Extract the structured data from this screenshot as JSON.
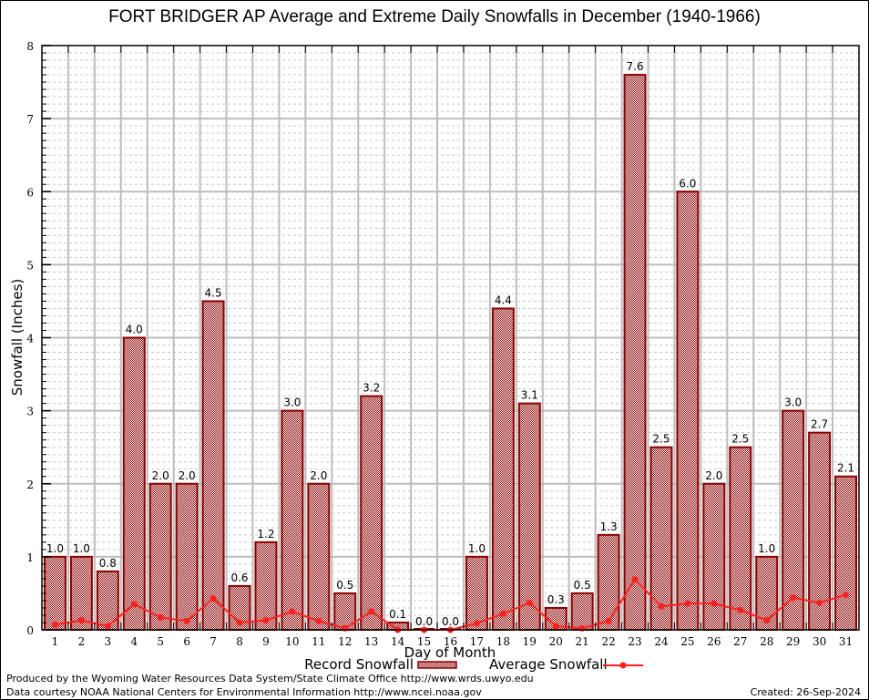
{
  "chart_data": {
    "type": "bar",
    "title": "FORT BRIDGER AP Average and Extreme Daily Snowfalls in December (1940-1966)",
    "xlabel": "Day of Month",
    "ylabel": "Snowfall (Inches)",
    "ylim": [
      0,
      8
    ],
    "yticks": [
      "0",
      "1",
      "2",
      "3",
      "4",
      "5",
      "6",
      "7",
      "8"
    ],
    "grid": true,
    "legend": "bottom",
    "categories": [
      "1",
      "2",
      "3",
      "4",
      "5",
      "6",
      "7",
      "8",
      "9",
      "10",
      "11",
      "12",
      "13",
      "14",
      "15",
      "16",
      "17",
      "18",
      "19",
      "20",
      "21",
      "22",
      "23",
      "24",
      "25",
      "26",
      "27",
      "28",
      "29",
      "30",
      "31"
    ],
    "series": [
      {
        "name": "Record Snowfall",
        "type": "bar",
        "color": "#8b0000",
        "values": [
          1.0,
          1.0,
          0.8,
          4.0,
          2.0,
          2.0,
          4.5,
          0.6,
          1.2,
          3.0,
          2.0,
          0.5,
          3.2,
          0.1,
          0.0,
          0.0,
          1.0,
          4.4,
          3.1,
          0.3,
          0.5,
          1.3,
          7.6,
          2.5,
          6.0,
          2.0,
          2.5,
          1.0,
          3.0,
          2.7,
          2.1
        ],
        "labels": [
          "1.0",
          "1.0",
          "0.8",
          "4.0",
          "2.0",
          "2.0",
          "4.5",
          "0.6",
          "1.2",
          "3.0",
          "2.0",
          "0.5",
          "3.2",
          "0.1",
          "0.0",
          "0.0",
          "1.0",
          "4.4",
          "3.1",
          "0.3",
          "0.5",
          "1.3",
          "7.6",
          "2.5",
          "6.0",
          "2.0",
          "2.5",
          "1.0",
          "3.0",
          "2.7",
          "2.1"
        ]
      },
      {
        "name": "Average Snowfall",
        "type": "line",
        "color": "#ff2020",
        "values": [
          0.07,
          0.13,
          0.05,
          0.35,
          0.17,
          0.12,
          0.43,
          0.1,
          0.13,
          0.25,
          0.12,
          0.02,
          0.25,
          0.0,
          0.0,
          0.0,
          0.09,
          0.22,
          0.37,
          0.05,
          0.02,
          0.12,
          0.69,
          0.32,
          0.36,
          0.36,
          0.27,
          0.13,
          0.44,
          0.37,
          0.48
        ]
      }
    ]
  },
  "footer": {
    "produced_by": "Produced by the Wyoming Water Resources Data System/State Climate Office http://www.wrds.uwyo.edu",
    "courtesy": "Data courtesy NOAA National Centers for Environmental Information http://www.ncei.noaa.gov",
    "created": "Created: 26-Sep-2024"
  }
}
